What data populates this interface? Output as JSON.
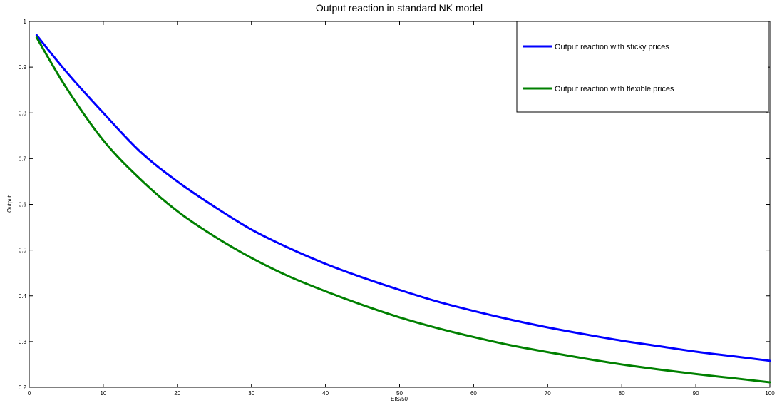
{
  "chart_data": {
    "type": "line",
    "title": "Output reaction in standard NK model",
    "xlabel": "EIS/50",
    "ylabel": "Output",
    "xlim": [
      0,
      100
    ],
    "ylim": [
      0.2,
      1
    ],
    "xticks": [
      0,
      10,
      20,
      30,
      40,
      50,
      60,
      70,
      80,
      90,
      100
    ],
    "yticks": [
      0.2,
      0.3,
      0.4,
      0.5,
      0.6,
      0.7,
      0.8,
      0.9,
      1
    ],
    "xtick_labels": [
      "0",
      "10",
      "20",
      "30",
      "40",
      "50",
      "60",
      "70",
      "80",
      "90",
      "100"
    ],
    "ytick_labels": [
      "0.2",
      "0.3",
      "0.4",
      "0.5",
      "0.6",
      "0.7",
      "0.8",
      "0.9",
      "1"
    ],
    "grid": false,
    "legend_position": "top-right",
    "x": [
      1,
      5,
      10,
      15,
      20,
      25,
      30,
      35,
      40,
      45,
      50,
      55,
      60,
      65,
      70,
      75,
      80,
      85,
      90,
      95,
      100
    ],
    "series": [
      {
        "name": "Output reaction with sticky prices",
        "color": "#0000ff",
        "values": [
          0.97,
          0.89,
          0.8,
          0.715,
          0.65,
          0.595,
          0.545,
          0.505,
          0.47,
          0.44,
          0.413,
          0.388,
          0.367,
          0.348,
          0.331,
          0.316,
          0.302,
          0.29,
          0.278,
          0.268,
          0.258
        ]
      },
      {
        "name": "Output reaction with flexible prices",
        "color": "#008000",
        "values": [
          0.965,
          0.855,
          0.74,
          0.655,
          0.585,
          0.53,
          0.483,
          0.443,
          0.41,
          0.38,
          0.353,
          0.33,
          0.31,
          0.292,
          0.277,
          0.263,
          0.25,
          0.239,
          0.229,
          0.22,
          0.211
        ]
      }
    ]
  }
}
